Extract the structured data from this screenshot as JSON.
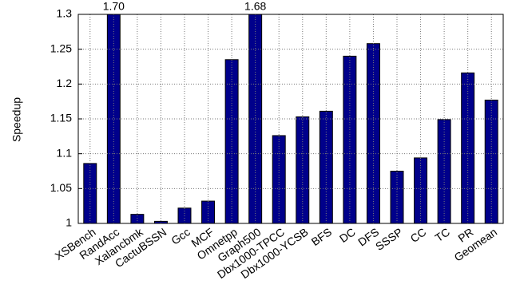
{
  "chart_data": {
    "type": "bar",
    "ylabel": "Speedup",
    "categories": [
      "XSBench",
      "RandAcc",
      "Xalancbmk",
      "CactuBSSN",
      "Gcc",
      "MCF",
      "Omnetpp",
      "Graph500",
      "Dbx1000-TPCC",
      "Dbx1000-YCSB",
      "BFS",
      "DC",
      "DFS",
      "SSSP",
      "CC",
      "TC",
      "PR",
      "Geomean"
    ],
    "values": [
      1.086,
      1.7,
      1.013,
      1.003,
      1.022,
      1.032,
      1.235,
      1.68,
      1.126,
      1.153,
      1.161,
      1.24,
      1.258,
      1.075,
      1.094,
      1.149,
      1.216,
      1.177
    ],
    "value_labels": [
      null,
      "1.70",
      null,
      null,
      null,
      null,
      null,
      "1.68",
      null,
      null,
      null,
      null,
      null,
      null,
      null,
      null,
      null,
      null
    ],
    "color": "#00008b",
    "ylim": [
      1,
      1.3
    ],
    "yticks": [
      1,
      1.05,
      1.1,
      1.15,
      1.2,
      1.25,
      1.3
    ],
    "grid": true
  }
}
